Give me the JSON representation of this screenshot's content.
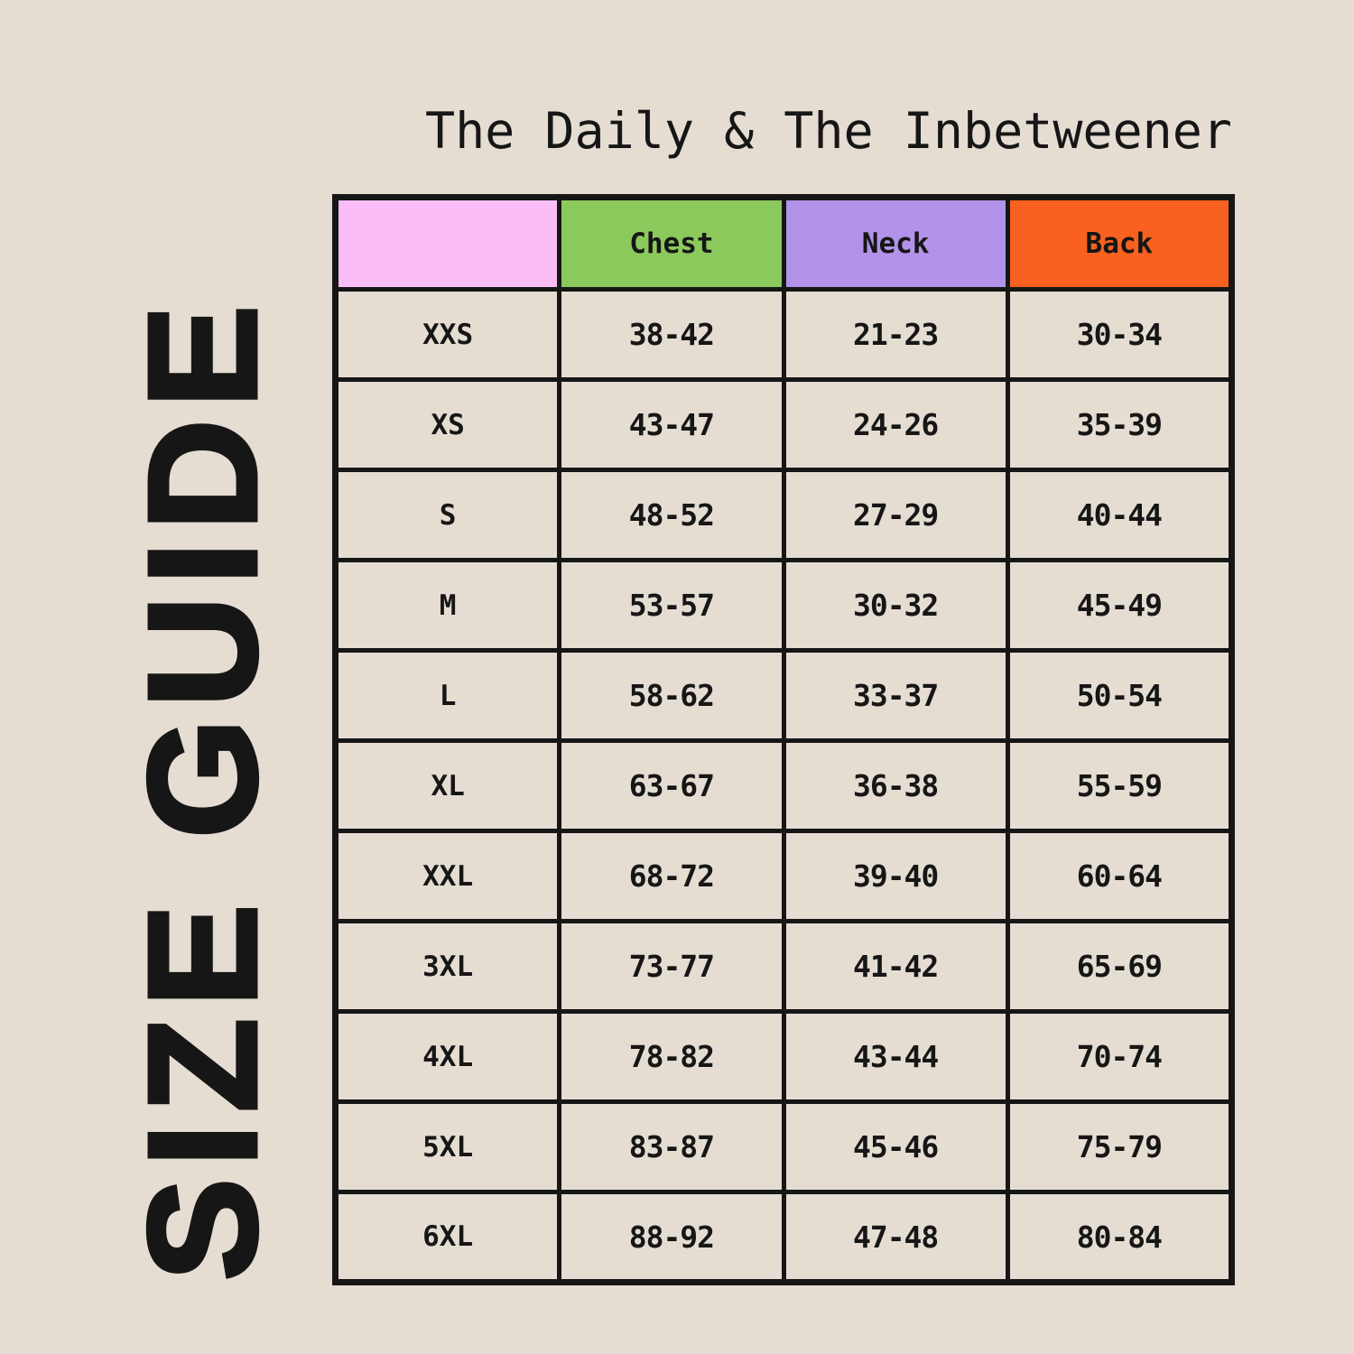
{
  "page": {
    "title": "The Daily & The Inbetweener",
    "side_label": "SIZE GUIDE",
    "colors": {
      "background": "#e5ddd2",
      "ink": "#161616"
    }
  },
  "table": {
    "columns": [
      {
        "label": "",
        "color": "#fbbdf8"
      },
      {
        "label": "Chest",
        "color": "#8cc95c"
      },
      {
        "label": "Neck",
        "color": "#b393e9"
      },
      {
        "label": "Back",
        "color": "#f8611f"
      }
    ],
    "rows": [
      {
        "size": "XXS",
        "chest": "38-42",
        "neck": "21-23",
        "back": "30-34"
      },
      {
        "size": "XS",
        "chest": "43-47",
        "neck": "24-26",
        "back": "35-39"
      },
      {
        "size": "S",
        "chest": "48-52",
        "neck": "27-29",
        "back": "40-44"
      },
      {
        "size": "M",
        "chest": "53-57",
        "neck": "30-32",
        "back": "45-49"
      },
      {
        "size": "L",
        "chest": "58-62",
        "neck": "33-37",
        "back": "50-54"
      },
      {
        "size": "XL",
        "chest": "63-67",
        "neck": "36-38",
        "back": "55-59"
      },
      {
        "size": "XXL",
        "chest": "68-72",
        "neck": "39-40",
        "back": "60-64"
      },
      {
        "size": "3XL",
        "chest": "73-77",
        "neck": "41-42",
        "back": "65-69"
      },
      {
        "size": "4XL",
        "chest": "78-82",
        "neck": "43-44",
        "back": "70-74"
      },
      {
        "size": "5XL",
        "chest": "83-87",
        "neck": "45-46",
        "back": "75-79"
      },
      {
        "size": "6XL",
        "chest": "88-92",
        "neck": "47-48",
        "back": "80-84"
      }
    ]
  }
}
